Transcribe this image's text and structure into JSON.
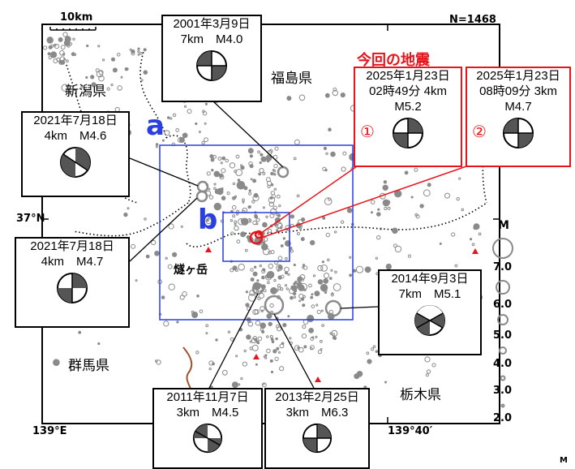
{
  "map": {
    "count_label": "N=1468",
    "scale_bar_label": "10km",
    "lat_label": "37°N",
    "lon_left_label": "139°E",
    "lon_right_label": "139°40′",
    "corner_mark": "M",
    "current_quakes_title": "今回の地震",
    "region_labels": {
      "niigata": "新潟県",
      "fukushima": "福島県",
      "gunma": "群馬県",
      "tochigi": "栃木県",
      "hiuchigatake": "燧ヶ岳"
    },
    "area_a_label": "a",
    "area_b_label": "b"
  },
  "legend": {
    "title": "M",
    "magnitudes": [
      "7.0",
      "6.0",
      "5.0",
      "4.0",
      "3.0",
      "2.0"
    ]
  },
  "mechanism_boxes": [
    {
      "id": "2001-03-09",
      "date": "2001年3月9日",
      "depth_mag": "7km　M4.0",
      "extra": ""
    },
    {
      "id": "2021-07-18-a",
      "date": "2021年7月18日",
      "depth_mag": "4km　M4.6",
      "extra": ""
    },
    {
      "id": "2021-07-18-b",
      "date": "2021年7月18日",
      "depth_mag": "4km　M4.7",
      "extra": ""
    },
    {
      "id": "2014-09-03",
      "date": "2014年9月3日",
      "depth_mag": "7km　M5.1",
      "extra": ""
    },
    {
      "id": "2011-11-07",
      "date": "2011年11月7日",
      "depth_mag": "3km　M4.5",
      "extra": ""
    },
    {
      "id": "2013-02-25",
      "date": "2013年2月25日",
      "depth_mag": "3km　M6.3",
      "extra": ""
    }
  ],
  "current_boxes": [
    {
      "number": "①",
      "date": "2025年1月23日",
      "time_depth": "02時49分 4km",
      "mag": "M5.2"
    },
    {
      "number": "②",
      "date": "2025年1月23日",
      "time_depth": "08時09分 3km",
      "mag": "M4.7"
    }
  ],
  "colors": {
    "current_red": "#e8141c",
    "region_blue": "#2a3fe0",
    "epicenter_gray": "#8a8a8a"
  }
}
